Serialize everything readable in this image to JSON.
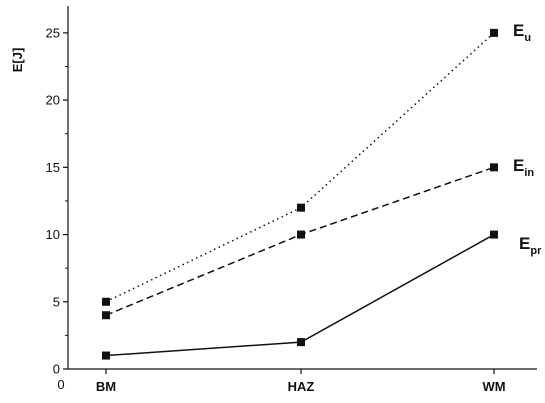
{
  "chart_data": {
    "type": "line",
    "categories": [
      "BM",
      "HAZ",
      "WM"
    ],
    "x_origin_label": "0",
    "ylabel": "E[J]",
    "ylim": [
      0,
      27
    ],
    "y_ticks": [
      0,
      5,
      10,
      15,
      20,
      25
    ],
    "grid": false,
    "series": [
      {
        "name": "E",
        "subscript": "u",
        "values": [
          5,
          12,
          25
        ],
        "line_style": "dotted",
        "color": "#111111"
      },
      {
        "name": "E",
        "subscript": "in",
        "values": [
          4,
          10,
          15
        ],
        "line_style": "dashed",
        "color": "#111111"
      },
      {
        "name": "E",
        "subscript": "pr",
        "values": [
          1,
          2,
          10
        ],
        "line_style": "solid",
        "color": "#111111"
      }
    ]
  }
}
